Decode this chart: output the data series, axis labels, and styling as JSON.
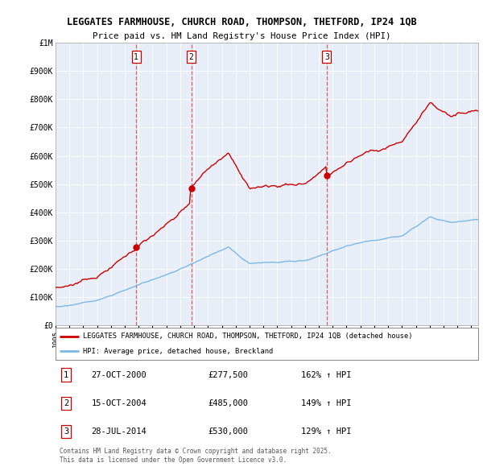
{
  "title_line1": "LEGGATES FARMHOUSE, CHURCH ROAD, THOMPSON, THETFORD, IP24 1QB",
  "title_line2": "Price paid vs. HM Land Registry's House Price Index (HPI)",
  "ylim": [
    0,
    1000000
  ],
  "yticks": [
    0,
    100000,
    200000,
    300000,
    400000,
    500000,
    600000,
    700000,
    800000,
    900000,
    1000000
  ],
  "ytick_labels": [
    "£0",
    "£100K",
    "£200K",
    "£300K",
    "£400K",
    "£500K",
    "£600K",
    "£700K",
    "£800K",
    "£900K",
    "£1M"
  ],
  "xmin": 1995.0,
  "xmax": 2025.5,
  "hpi_color": "#7ab8e8",
  "price_color": "#cc0000",
  "sale1_date": 2000.82,
  "sale1_price": 277500,
  "sale1_label": "27-OCT-2000",
  "sale1_amount": "£277,500",
  "sale1_pct": "162% ↑ HPI",
  "sale2_date": 2004.79,
  "sale2_price": 485000,
  "sale2_label": "15-OCT-2004",
  "sale2_amount": "£485,000",
  "sale2_pct": "149% ↑ HPI",
  "sale3_date": 2014.57,
  "sale3_price": 530000,
  "sale3_label": "28-JUL-2014",
  "sale3_amount": "£530,000",
  "sale3_pct": "129% ↑ HPI",
  "legend_label1": "LEGGATES FARMHOUSE, CHURCH ROAD, THOMPSON, THETFORD, IP24 1QB (detached house)",
  "legend_label2": "HPI: Average price, detached house, Breckland",
  "footnote": "Contains HM Land Registry data © Crown copyright and database right 2025.\nThis data is licensed under the Open Government Licence v3.0.",
  "background_color": "#ffffff",
  "plot_bg_color": "#e8eef8"
}
